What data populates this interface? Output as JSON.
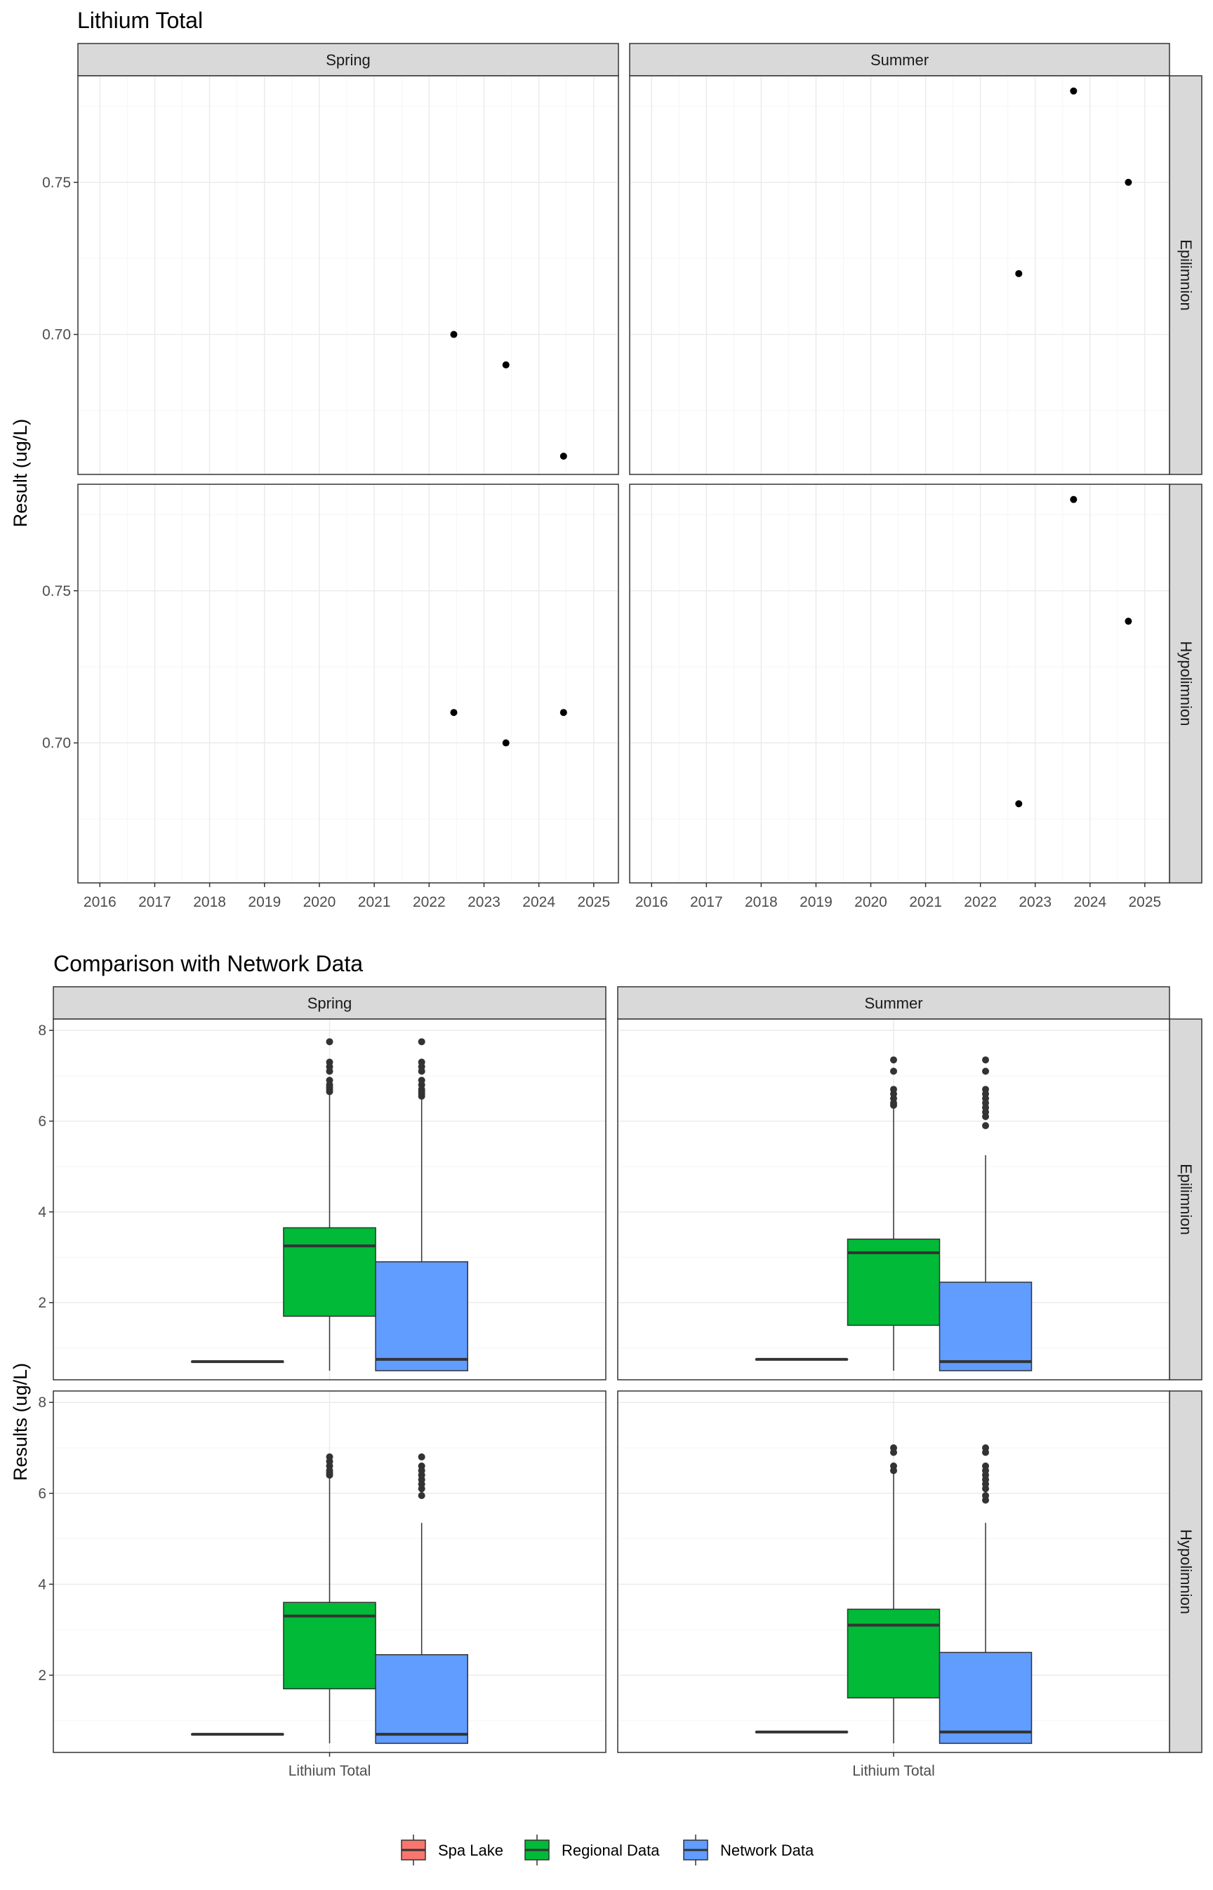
{
  "colors": {
    "spa_lake": "#F8766D",
    "regional": "#00BA38",
    "network": "#619CFF",
    "strip_bg": "#D9D9D9",
    "grid_major": "#EBEBEB",
    "grid_minor": "#F5F5F5",
    "panel_border": "#333333",
    "point": "#000000",
    "outlier": "#333333",
    "text": "#000000",
    "tick_text": "#4D4D4D"
  },
  "chart_data": [
    {
      "type": "scatter",
      "title": "Lithium Total",
      "xlabel": "",
      "ylabel": "Result (ug/L)",
      "grid": true,
      "x_ticks": [
        "2016",
        "2017",
        "2018",
        "2019",
        "2020",
        "2021",
        "2022",
        "2023",
        "2024",
        "2025"
      ],
      "xlim": [
        2015.6,
        2025.45
      ],
      "y_ticks": [
        "0.70",
        "0.75"
      ],
      "ylim": [
        0.654,
        0.785
      ],
      "col_facets": [
        "Spring",
        "Summer"
      ],
      "row_facets": [
        "Epilimnion",
        "Hypolimnion"
      ],
      "panels": [
        {
          "season": "Spring",
          "layer": "Epilimnion",
          "points": [
            {
              "x": 2022.45,
              "y": 0.7
            },
            {
              "x": 2023.4,
              "y": 0.69
            },
            {
              "x": 2024.45,
              "y": 0.66
            }
          ]
        },
        {
          "season": "Summer",
          "layer": "Epilimnion",
          "points": [
            {
              "x": 2022.7,
              "y": 0.72
            },
            {
              "x": 2023.7,
              "y": 0.78
            },
            {
              "x": 2024.7,
              "y": 0.75
            }
          ]
        },
        {
          "season": "Spring",
          "layer": "Hypolimnion",
          "points": [
            {
              "x": 2022.45,
              "y": 0.71
            },
            {
              "x": 2023.4,
              "y": 0.7
            },
            {
              "x": 2024.45,
              "y": 0.71
            }
          ]
        },
        {
          "season": "Summer",
          "layer": "Hypolimnion",
          "points": [
            {
              "x": 2022.7,
              "y": 0.68
            },
            {
              "x": 2023.7,
              "y": 0.78
            },
            {
              "x": 2024.7,
              "y": 0.74
            }
          ]
        }
      ]
    },
    {
      "type": "box",
      "title": "Comparison with Network Data",
      "xlabel": "",
      "ylabel": "Results (ug/L)",
      "grid": true,
      "category": "Lithium Total",
      "y_ticks": [
        "2",
        "4",
        "6",
        "8"
      ],
      "ylim": [
        0.3,
        8.25
      ],
      "col_facets": [
        "Spring",
        "Summer"
      ],
      "row_facets": [
        "Epilimnion",
        "Hypolimnion"
      ],
      "legend": {
        "position": "bottom",
        "entries": [
          "Spa Lake",
          "Regional Data",
          "Network Data"
        ]
      },
      "panels": [
        {
          "season": "Spring",
          "layer": "Epilimnion",
          "boxes": [
            {
              "group": "Spa Lake",
              "min": 0.7,
              "q1": 0.7,
              "median": 0.7,
              "q3": 0.7,
              "max": 0.7,
              "outliers": []
            },
            {
              "group": "Regional Data",
              "min": 0.5,
              "q1": 1.7,
              "median": 3.25,
              "q3": 3.65,
              "max": 6.6,
              "outliers": [
                6.65,
                6.7,
                6.75,
                6.8,
                6.9,
                7.1,
                7.2,
                7.3,
                7.75
              ]
            },
            {
              "group": "Network Data",
              "min": 0.5,
              "q1": 0.5,
              "median": 0.75,
              "q3": 2.9,
              "max": 6.5,
              "outliers": [
                6.55,
                6.6,
                6.65,
                6.7,
                6.8,
                6.9,
                7.1,
                7.2,
                7.3,
                7.75
              ]
            }
          ]
        },
        {
          "season": "Summer",
          "layer": "Epilimnion",
          "boxes": [
            {
              "group": "Spa Lake",
              "min": 0.75,
              "q1": 0.75,
              "median": 0.75,
              "q3": 0.75,
              "max": 0.75,
              "outliers": []
            },
            {
              "group": "Regional Data",
              "min": 0.5,
              "q1": 1.5,
              "median": 3.1,
              "q3": 3.4,
              "max": 6.3,
              "outliers": [
                6.35,
                6.4,
                6.5,
                6.6,
                6.7,
                7.1,
                7.35
              ]
            },
            {
              "group": "Network Data",
              "min": 0.5,
              "q1": 0.5,
              "median": 0.7,
              "q3": 2.45,
              "max": 5.25,
              "outliers": [
                5.9,
                6.1,
                6.2,
                6.3,
                6.4,
                6.5,
                6.6,
                6.7,
                7.1,
                7.35
              ]
            }
          ]
        },
        {
          "season": "Spring",
          "layer": "Hypolimnion",
          "boxes": [
            {
              "group": "Spa Lake",
              "min": 0.7,
              "q1": 0.7,
              "median": 0.7,
              "q3": 0.7,
              "max": 0.7,
              "outliers": []
            },
            {
              "group": "Regional Data",
              "min": 0.5,
              "q1": 1.7,
              "median": 3.3,
              "q3": 3.6,
              "max": 6.35,
              "outliers": [
                6.4,
                6.45,
                6.5,
                6.6,
                6.7,
                6.8
              ]
            },
            {
              "group": "Network Data",
              "min": 0.5,
              "q1": 0.5,
              "median": 0.7,
              "q3": 2.45,
              "max": 5.35,
              "outliers": [
                5.95,
                6.1,
                6.2,
                6.3,
                6.4,
                6.5,
                6.6,
                6.8
              ]
            }
          ]
        },
        {
          "season": "Summer",
          "layer": "Hypolimnion",
          "boxes": [
            {
              "group": "Spa Lake",
              "min": 0.75,
              "q1": 0.75,
              "median": 0.75,
              "q3": 0.75,
              "max": 0.75,
              "outliers": []
            },
            {
              "group": "Regional Data",
              "min": 0.5,
              "q1": 1.5,
              "median": 3.1,
              "q3": 3.45,
              "max": 6.45,
              "outliers": [
                6.5,
                6.6,
                6.9,
                7.0
              ]
            },
            {
              "group": "Network Data",
              "min": 0.5,
              "q1": 0.5,
              "median": 0.75,
              "q3": 2.5,
              "max": 5.35,
              "outliers": [
                5.85,
                5.95,
                6.1,
                6.2,
                6.3,
                6.4,
                6.5,
                6.6,
                6.9,
                7.0
              ]
            }
          ]
        }
      ]
    }
  ]
}
